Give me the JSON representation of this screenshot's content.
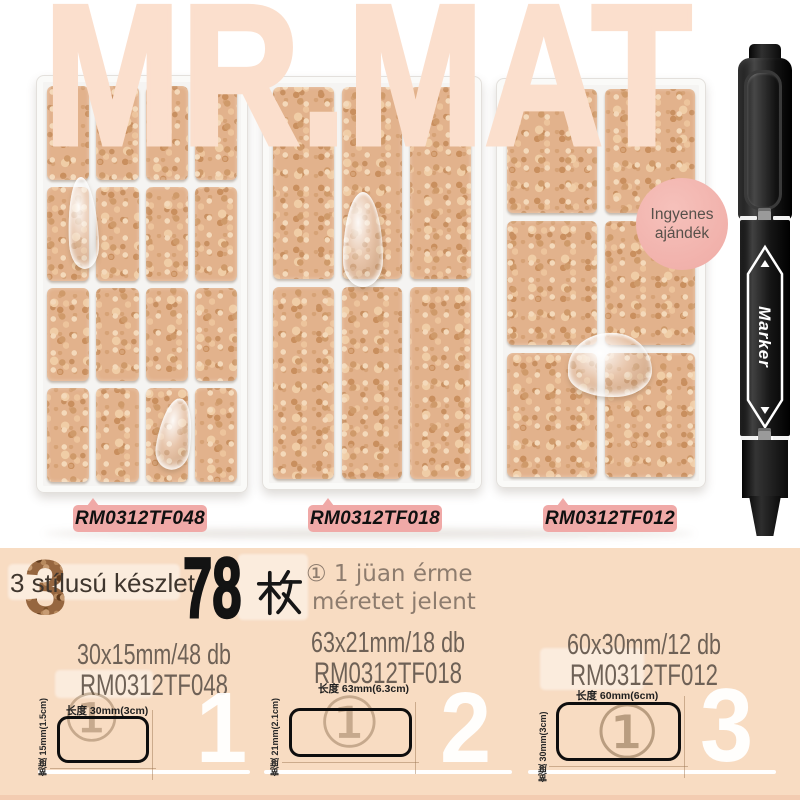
{
  "brand": {
    "title": "MR.MAT"
  },
  "hero": {
    "gift_badge": {
      "line1": "Ingyenes",
      "line2": "ajándék"
    },
    "pen_label": "Marker",
    "tags": [
      {
        "code": "RM0312TF048"
      },
      {
        "code": "RM0312TF018"
      },
      {
        "code": "RM0312TF012"
      }
    ]
  },
  "summary": {
    "styles_big_digit": "3",
    "styles_text": "3 stílusú készlet",
    "total_count": "78",
    "total_unit": "枚",
    "note_line1": "① 1 jüan érme",
    "note_line2": "méretet jelent"
  },
  "specs": [
    {
      "size": "30x15mm/48 db",
      "code": "RM0312TF048",
      "length_label": "长度 30mm(3cm)",
      "width_label": "宽度 15mm(1.5cm)",
      "coin": "①",
      "index": "1"
    },
    {
      "size": "63x21mm/18 db",
      "code": "RM0312TF018",
      "length_label": "长度 63mm(6.3cm)",
      "width_label": "宽度 21mm(2.1cm)",
      "coin": "①",
      "index": "2"
    },
    {
      "size": "60x30mm/12 db",
      "code": "RM0312TF012",
      "length_label": "长度 60mm(6cm)",
      "width_label": "宽度 30mm(3cm)",
      "coin": "①",
      "index": "3"
    }
  ],
  "colors": {
    "brand_letters": "#fbdfcd",
    "band_bg": "#f8dcc2",
    "tag_pink": "#f0a9a7",
    "gift_pink": "#f2b5b0",
    "cork_base": "#e2b28c",
    "text_dark": "#6e6156",
    "note_gray": "#8d7c6e"
  }
}
